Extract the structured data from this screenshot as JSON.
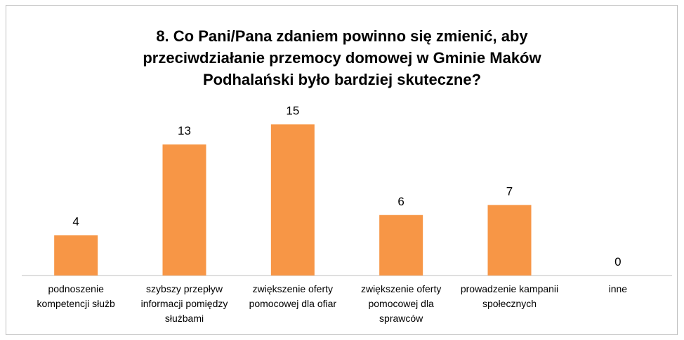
{
  "chart_data": {
    "type": "bar",
    "title": "8. Co Pani/Pana zdaniem powinno się zmienić, aby przeciwdziałanie przemocy domowej w Gminie Maków Podhalański było bardziej skuteczne?",
    "categories": [
      "podnoszenie kompetencji służb",
      "szybszy przepływ informacji pomiędzy służbami",
      "zwiększenie oferty pomocowej dla ofiar",
      "zwiększenie oferty pomocowej dla sprawców",
      "prowadzenie kampanii społecznych",
      "inne"
    ],
    "values": [
      4,
      13,
      15,
      6,
      7,
      0
    ],
    "color": "#f79646",
    "ylim": [
      0,
      16
    ]
  }
}
